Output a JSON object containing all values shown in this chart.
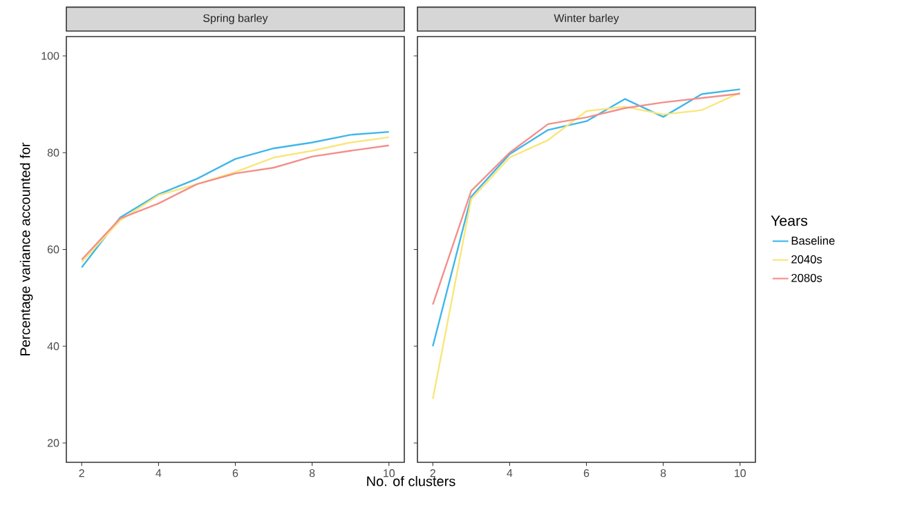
{
  "chart_data": [
    {
      "type": "line",
      "title": "Spring barley",
      "xlabel": "No. of clusters",
      "ylabel": "Percentage variance accounted for",
      "x": [
        2,
        3,
        4,
        5,
        6,
        7,
        8,
        9,
        10
      ],
      "xlim": [
        1.6,
        10.4
      ],
      "ylim": [
        16,
        104
      ],
      "xticks": [
        2,
        4,
        6,
        8,
        10
      ],
      "yticks": [
        20,
        40,
        60,
        80,
        100
      ],
      "series": [
        {
          "color": "#3db7e9",
          "values": [
            56.3,
            66.6,
            71.4,
            74.6,
            78.7,
            80.9,
            82.1,
            83.7,
            84.3
          ]
        },
        {
          "color": "#f9e67a",
          "values": [
            57.4,
            66.0,
            71.2,
            73.5,
            76.0,
            79.0,
            80.4,
            82.1,
            83.2
          ]
        },
        {
          "color": "#f38f8a",
          "values": [
            57.9,
            66.4,
            69.5,
            73.5,
            75.7,
            76.9,
            79.2,
            80.4,
            81.5
          ]
        }
      ]
    },
    {
      "type": "line",
      "title": "Winter barley",
      "legend_title": "Years",
      "legend": "right",
      "tick_labels": "x",
      "x": [
        2,
        3,
        4,
        5,
        6,
        7,
        8,
        9,
        10
      ],
      "xlim": [
        1.6,
        10.4
      ],
      "ylim": [
        16,
        104
      ],
      "xticks": [
        2,
        4,
        6,
        8,
        10
      ],
      "yticks": [
        20,
        40,
        60,
        80,
        100
      ],
      "series": [
        {
          "name": "Baseline",
          "color": "#3db7e9",
          "values": [
            40.0,
            70.9,
            79.7,
            84.7,
            86.5,
            91.1,
            87.4,
            92.1,
            93.1
          ]
        },
        {
          "name": "2040s",
          "color": "#f9e67a",
          "values": [
            29.1,
            70.4,
            79.0,
            82.6,
            88.6,
            89.5,
            87.9,
            88.8,
            92.4
          ]
        },
        {
          "name": "2080s",
          "color": "#f38f8a",
          "values": [
            48.6,
            72.1,
            80.0,
            85.9,
            87.3,
            89.2,
            90.4,
            91.3,
            92.2
          ]
        }
      ]
    }
  ]
}
